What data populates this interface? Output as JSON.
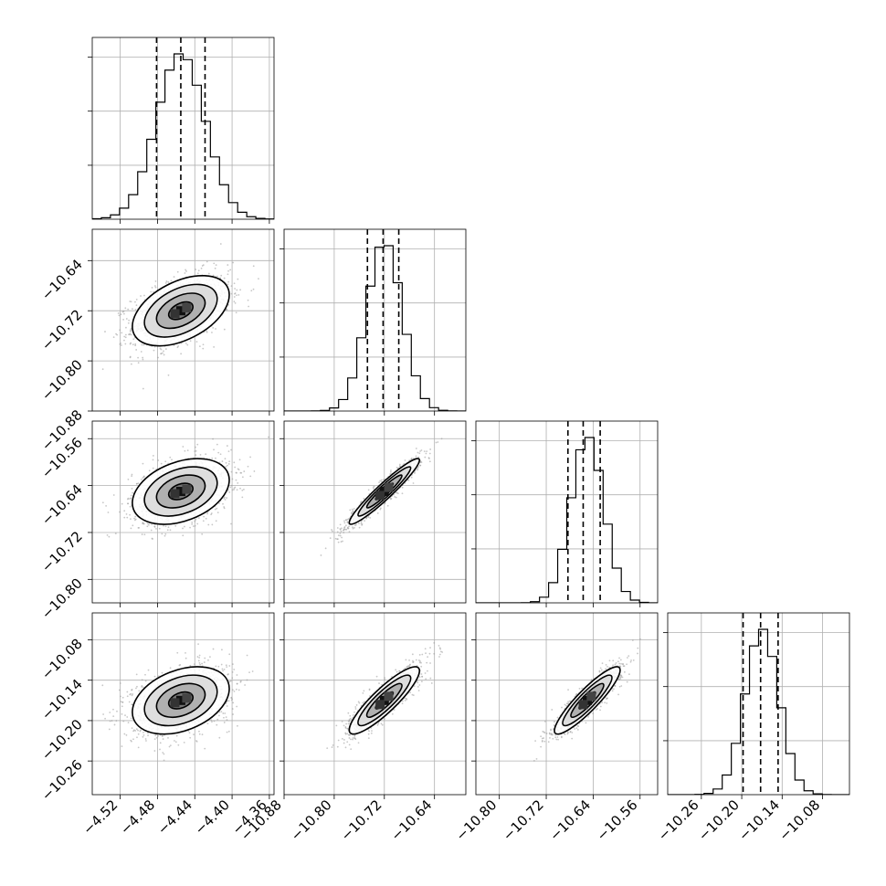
{
  "chart_data": {
    "type": "scatter",
    "layout": "corner-plot",
    "grid": true,
    "dimensions": [
      {
        "index": 0,
        "range": [
          -4.55,
          -4.355
        ],
        "ticks": [
          "−4.52",
          "−4.48",
          "−4.44",
          "−4.40",
          "−4.36"
        ],
        "tick_values": [
          -4.52,
          -4.48,
          -4.44,
          -4.4,
          -4.36
        ],
        "mean": -4.455,
        "sd": 0.026,
        "quantiles": [
          -4.481,
          -4.455,
          -4.429
        ]
      },
      {
        "index": 1,
        "range": [
          -10.88,
          -10.59
        ],
        "ticks": [
          "−10.88",
          "−10.80",
          "−10.72",
          "−10.64"
        ],
        "tick_values": [
          -10.88,
          -10.8,
          -10.72,
          -10.64
        ],
        "mean": -10.72,
        "sd": 0.028,
        "quantiles": [
          -10.747,
          -10.722,
          -10.697
        ]
      },
      {
        "index": 2,
        "range": [
          -10.84,
          -10.53
        ],
        "ticks": [
          "−10.80",
          "−10.72",
          "−10.64",
          "−10.56"
        ],
        "tick_values": [
          -10.8,
          -10.72,
          -10.64,
          -10.56
        ],
        "mean": -10.65,
        "sd": 0.028,
        "quantiles": [
          -10.683,
          -10.657,
          -10.628
        ]
      },
      {
        "index": 3,
        "range": [
          -10.31,
          -10.04
        ],
        "ticks": [
          "−10.26",
          "−10.20",
          "−10.14",
          "−10.08"
        ],
        "tick_values": [
          -10.26,
          -10.2,
          -10.14,
          -10.08
        ],
        "mean": -10.17,
        "sd": 0.025,
        "quantiles": [
          -10.198,
          -10.172,
          -10.146
        ]
      }
    ],
    "y_ticks": {
      "1": [
        "−10.64",
        "−10.72",
        "−10.80",
        "−10.88"
      ],
      "2": [
        "−10.56",
        "−10.64",
        "−10.72",
        "−10.80"
      ],
      "3": [
        "−10.08",
        "−10.14",
        "−10.20",
        "−10.26"
      ]
    },
    "correlations": [
      {
        "x": 0,
        "y": 1,
        "rho": 0.45
      },
      {
        "x": 0,
        "y": 2,
        "rho": 0.35
      },
      {
        "x": 1,
        "y": 2,
        "rho": 0.95
      },
      {
        "x": 0,
        "y": 3,
        "rho": 0.35
      },
      {
        "x": 1,
        "y": 3,
        "rho": 0.88
      },
      {
        "x": 2,
        "y": 3,
        "rho": 0.9
      }
    ]
  }
}
